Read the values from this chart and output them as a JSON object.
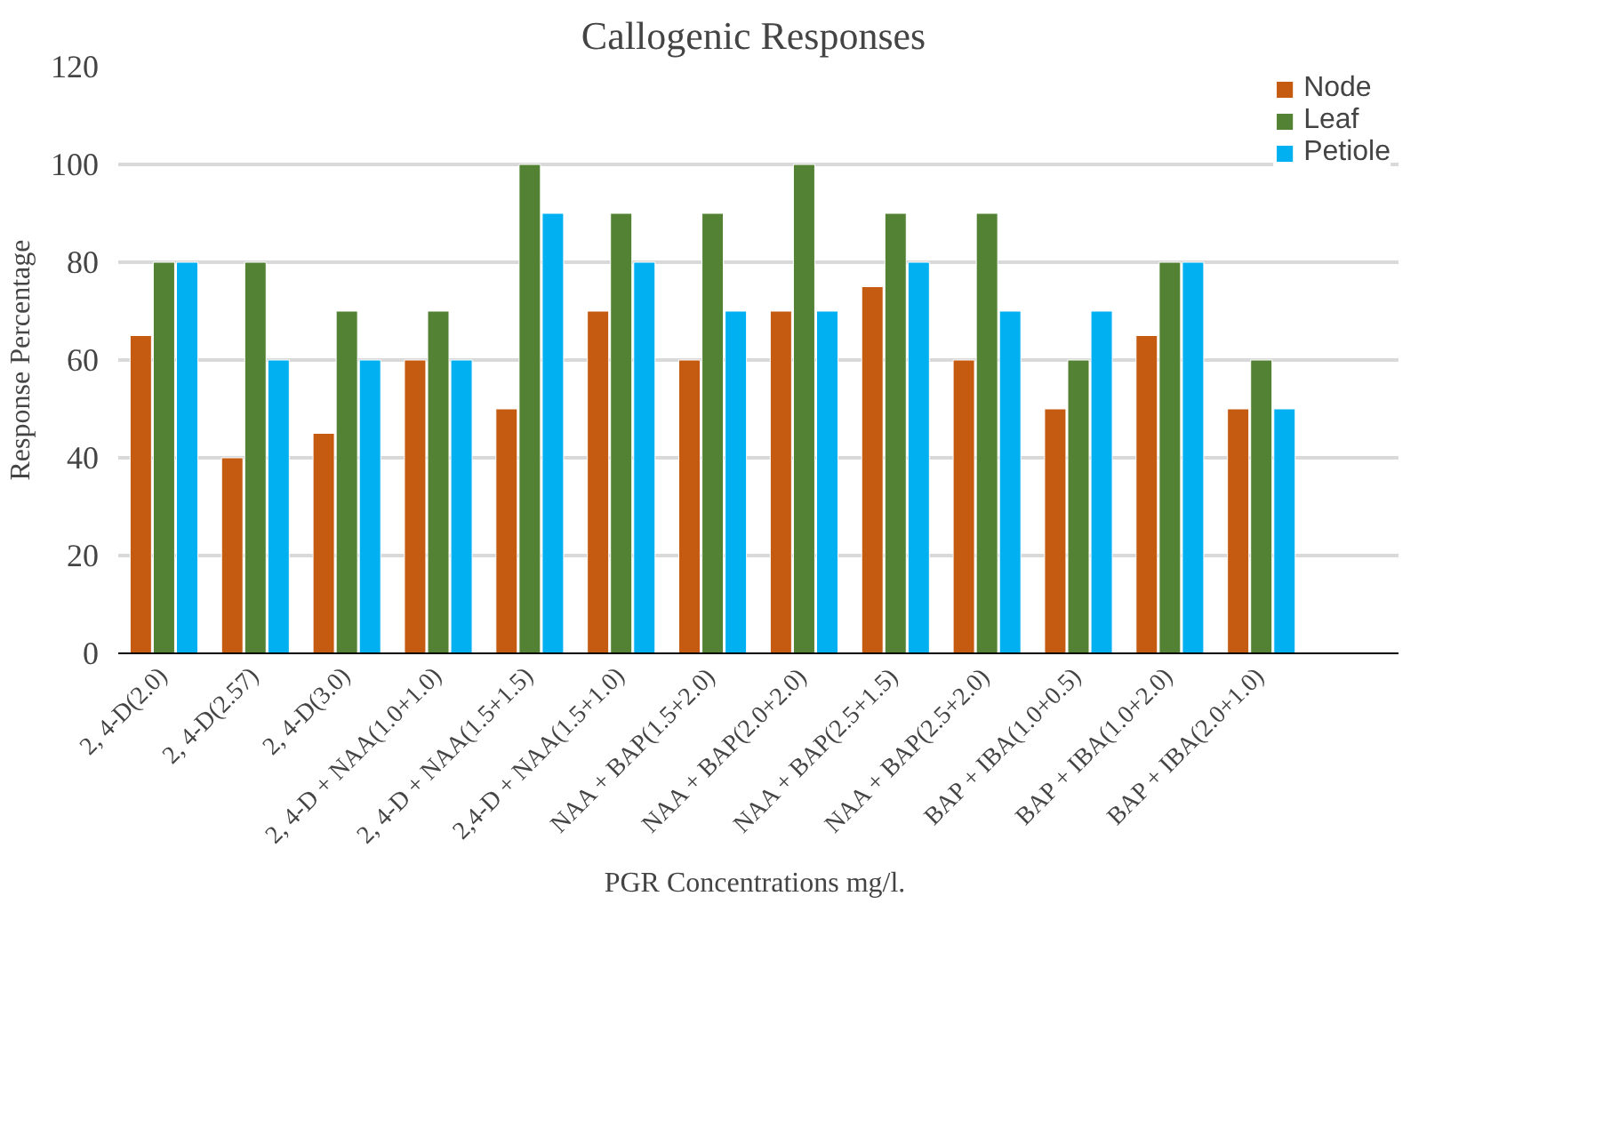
{
  "chart_data": {
    "type": "bar",
    "title": "Callogenic  Responses",
    "xlabel": "PGR  Concentrations mg/l.",
    "ylabel": "Response Percentage",
    "categories": [
      "2, 4-D(2.0)",
      "2, 4-D(2.57)",
      "2, 4-D(3.0)",
      "2, 4-D + NAA(1.0+1.0)",
      "2, 4-D + NAA(1.5+1.5)",
      "2,4-D + NAA(1.5+1.0)",
      "NAA + BAP(1.5+2.0)",
      "NAA + BAP(2.0+2.0)",
      "NAA + BAP(2.5+1.5)",
      "NAA + BAP(2.5+2.0)",
      "BAP + IBA(1.0+0.5)",
      "BAP + IBA(1.0+2.0)",
      "BAP + IBA(2.0+1.0)",
      null
    ],
    "series": [
      {
        "name": "Node",
        "color": "#c55a11",
        "values": [
          65,
          40,
          45,
          60,
          50,
          70,
          60,
          70,
          75,
          60,
          50,
          65,
          50,
          null
        ]
      },
      {
        "name": "Leaf",
        "color": "#548235",
        "values": [
          80,
          80,
          70,
          70,
          100,
          90,
          90,
          100,
          90,
          90,
          60,
          80,
          60,
          null
        ]
      },
      {
        "name": "Petiole",
        "color": "#00b0f0",
        "values": [
          80,
          60,
          60,
          60,
          90,
          80,
          70,
          70,
          80,
          70,
          70,
          80,
          50,
          null
        ]
      }
    ],
    "ylim": [
      0,
      120
    ],
    "yticks": [
      0,
      20,
      40,
      60,
      80,
      100,
      120
    ],
    "grid": "y",
    "legend": "top right"
  }
}
